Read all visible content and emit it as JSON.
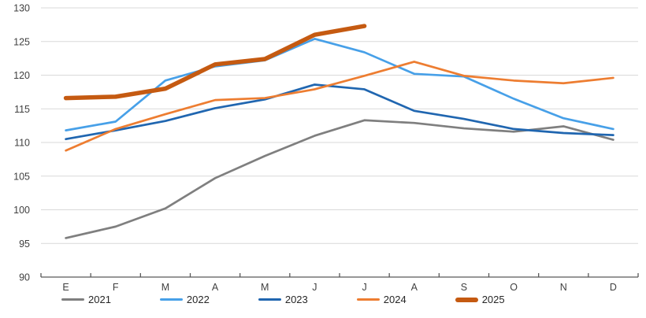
{
  "chart_data": {
    "type": "line",
    "categories": [
      "E",
      "F",
      "M",
      "A",
      "M",
      "J",
      "J",
      "A",
      "S",
      "O",
      "N",
      "D"
    ],
    "series": [
      {
        "name": "2021",
        "color": "#7F7F7F",
        "thick": false,
        "values": [
          95.8,
          97.5,
          100.2,
          104.7,
          108.0,
          111.0,
          113.3,
          112.9,
          112.1,
          111.6,
          112.4,
          110.4
        ]
      },
      {
        "name": "2022",
        "color": "#47A0E8",
        "thick": false,
        "values": [
          111.8,
          113.1,
          119.2,
          121.3,
          122.2,
          125.4,
          123.4,
          120.2,
          119.8,
          116.5,
          113.6,
          112.0
        ]
      },
      {
        "name": "2023",
        "color": "#2066B0",
        "thick": false,
        "values": [
          110.5,
          111.8,
          113.2,
          115.1,
          116.4,
          118.6,
          117.9,
          114.7,
          113.5,
          112.0,
          111.4,
          111.1
        ]
      },
      {
        "name": "2024",
        "color": "#ED7D31",
        "thick": false,
        "values": [
          108.8,
          112.0,
          114.2,
          116.3,
          116.6,
          117.9,
          119.9,
          122.0,
          119.9,
          119.2,
          118.8,
          119.6
        ]
      },
      {
        "name": "2025",
        "color": "#C55A11",
        "thick": true,
        "values": [
          116.6,
          116.8,
          118.0,
          121.6,
          122.4,
          126.0,
          127.3
        ]
      }
    ],
    "title": "",
    "xlabel": "",
    "ylabel": "",
    "ylim": [
      90,
      130
    ],
    "y_ticks": [
      90,
      95,
      100,
      105,
      110,
      115,
      120,
      125,
      130
    ],
    "grid": true,
    "legend_position": "bottom",
    "gridline_color": "#D9D9D9",
    "axis_line_color": "#595959",
    "axis_text_color": "#404040"
  }
}
